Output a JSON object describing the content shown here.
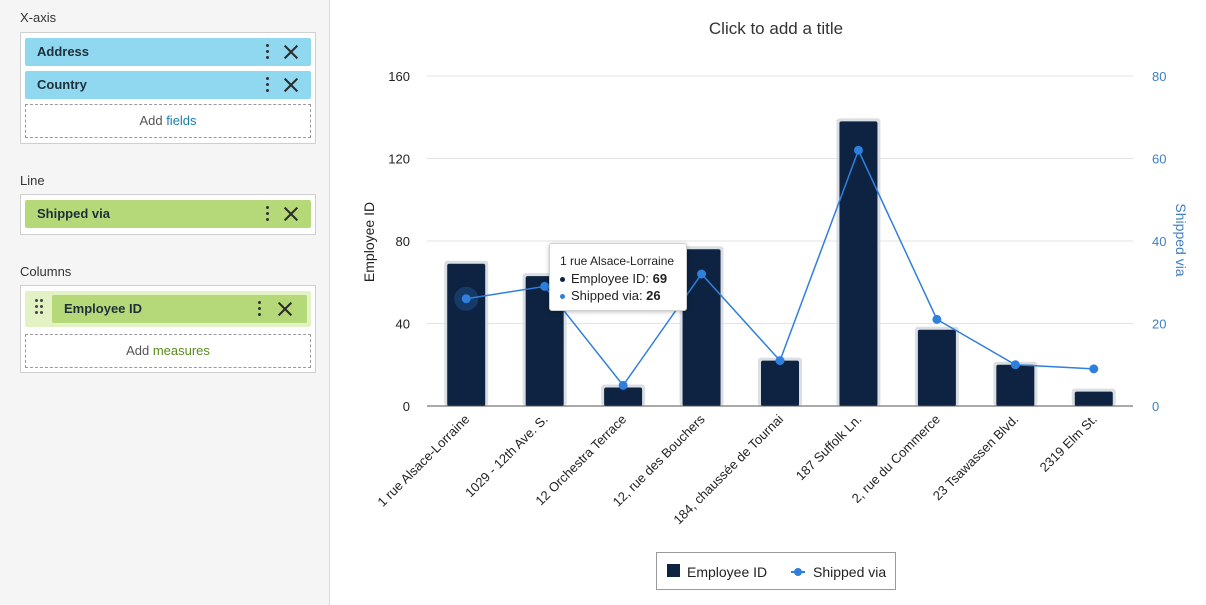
{
  "panel": {
    "xaxis": {
      "label": "X-axis",
      "fields": [
        "Address",
        "Country"
      ],
      "add_prefix": "Add ",
      "add_accent": "fields"
    },
    "line": {
      "label": "Line",
      "fields": [
        "Shipped via"
      ]
    },
    "columns": {
      "label": "Columns",
      "fields": [
        "Employee ID"
      ],
      "add_prefix": "Add ",
      "add_accent": "measures"
    }
  },
  "colors": {
    "bar": "#0e2341",
    "line": "#2f7fdc",
    "right_axis_text": "#3f7fc0",
    "chip_blue": "#8fd8ef",
    "chip_green": "#b5d978"
  },
  "tooltip": {
    "title": "1 rue Alsace-Lorraine",
    "row1_label": "Employee ID: ",
    "row1_value": "69",
    "row2_label": "Shipped via: ",
    "row2_value": "26"
  },
  "chart_data": {
    "type": "bar",
    "title": "Click to add a title",
    "categories": [
      "1 rue Alsace-Lorraine",
      "1029 - 12th Ave. S.",
      "12 Orchestra Terrace",
      "12, rue des Bouchers",
      "184, chaussée de Tournai",
      "187 Suffolk Ln.",
      "2, rue du Commerce",
      "23 Tsawassen Blvd.",
      "2319 Elm St."
    ],
    "series": [
      {
        "name": "Employee ID",
        "type": "bar",
        "axis": "left",
        "values": [
          69,
          63,
          9,
          76,
          22,
          138,
          37,
          20,
          7
        ]
      },
      {
        "name": "Shipped via",
        "type": "line",
        "axis": "right",
        "values": [
          26,
          29,
          5,
          32,
          11,
          62,
          21,
          10,
          9
        ]
      }
    ],
    "ylabel": "Employee ID",
    "ylabel_right": "Shipped via",
    "ylim": [
      0,
      160
    ],
    "ylim_right": [
      0,
      80
    ],
    "yticks": [
      "0",
      "40",
      "80",
      "120",
      "160"
    ],
    "yticks_right": [
      "0",
      "20",
      "40",
      "60",
      "80"
    ],
    "grid": true,
    "legend": "bottom-center",
    "highlighted_index": 0
  }
}
